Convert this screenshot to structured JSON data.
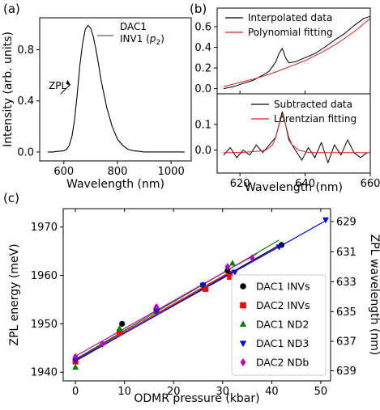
{
  "chart_data": [
    {
      "panel": "(a)",
      "type": "line",
      "xlabel": "Wavelength (nm)",
      "ylabel": "Intensity (arb. units)",
      "xlim": [
        510,
        1075
      ],
      "ylim": [
        -0.07,
        1.05
      ],
      "xticks": [
        600,
        800,
        1000
      ],
      "yticks": [
        0.0,
        0.4,
        0.8
      ],
      "yticklabels": [
        "0.0",
        "0.4",
        "0.8"
      ],
      "annotation": "ZPL",
      "annotation_point": [
        629,
        0.52
      ],
      "legend": {
        "position": "top-right",
        "line1": "DAC1",
        "line2": "INV1 (",
        "line2_italic": "p",
        "line2_sub": "2",
        "line2_end": ")"
      },
      "series": [
        {
          "color": "#000000",
          "x": [
            540,
            560,
            580,
            600,
            610,
            620,
            630,
            640,
            650,
            660,
            670,
            680,
            690,
            700,
            710,
            720,
            730,
            740,
            760,
            780,
            800,
            820,
            840,
            860,
            880,
            900,
            950,
            1000,
            1050
          ],
          "y": [
            0.0,
            0.0,
            0.005,
            0.01,
            0.02,
            0.05,
            0.12,
            0.25,
            0.45,
            0.68,
            0.85,
            0.96,
            0.99,
            0.97,
            0.9,
            0.8,
            0.68,
            0.55,
            0.35,
            0.2,
            0.1,
            0.05,
            0.02,
            0.01,
            0.005,
            0.0,
            0.0,
            0.0,
            0.0
          ]
        }
      ]
    },
    {
      "panel": "(b)",
      "type": "line",
      "xlim": [
        613,
        660
      ],
      "ylim": [
        -0.05,
        0.78
      ],
      "yticks": [
        0.0,
        0.2,
        0.4,
        0.6
      ],
      "yticklabels": [
        "0.0",
        "0.2",
        "0.4",
        "0.6"
      ],
      "legend": {
        "position": "top-left",
        "entries": [
          "Interpolated data",
          "Polynomial fitting"
        ]
      },
      "series": [
        {
          "name": "Interpolated data",
          "color": "#000000",
          "x": [
            615,
            618,
            621,
            624,
            627,
            629,
            631,
            632,
            633,
            634,
            635,
            637,
            640,
            643,
            646,
            649,
            652,
            655,
            658,
            660
          ],
          "y": [
            0.0,
            0.02,
            0.05,
            0.08,
            0.13,
            0.17,
            0.26,
            0.34,
            0.39,
            0.3,
            0.25,
            0.26,
            0.3,
            0.34,
            0.4,
            0.47,
            0.53,
            0.61,
            0.68,
            0.7
          ]
        },
        {
          "name": "Polynomial fitting",
          "color": "#e41a1c",
          "x": [
            615,
            620,
            625,
            630,
            635,
            640,
            645,
            650,
            655,
            660
          ],
          "y": [
            0.02,
            0.06,
            0.1,
            0.15,
            0.21,
            0.27,
            0.35,
            0.44,
            0.55,
            0.68
          ]
        }
      ]
    },
    {
      "panel": "(b) lower",
      "type": "line",
      "xlabel": "Wavelength (nm)",
      "xlim": [
        613,
        660
      ],
      "ylim": [
        -0.09,
        0.22
      ],
      "xticks": [
        620,
        640,
        660
      ],
      "yticks": [
        0.0,
        0.1
      ],
      "yticklabels": [
        "0.0",
        "0.1"
      ],
      "legend": {
        "position": "top-right",
        "entries": [
          "Subtracted data",
          "Lorentzian fitting"
        ]
      },
      "series": [
        {
          "name": "Subtracted data",
          "color": "#000000",
          "x": [
            615,
            617,
            619,
            621,
            623,
            625,
            627,
            629,
            631,
            632,
            633,
            634,
            635,
            637,
            639,
            641,
            643,
            645,
            647,
            649,
            651,
            653,
            655,
            657,
            659
          ],
          "y": [
            -0.02,
            0.01,
            -0.03,
            0.0,
            -0.02,
            0.02,
            -0.01,
            0.02,
            0.05,
            0.1,
            0.15,
            0.1,
            0.04,
            0.0,
            -0.04,
            0.01,
            -0.03,
            0.03,
            -0.05,
            0.02,
            -0.02,
            0.04,
            -0.01,
            -0.03,
            -0.01
          ]
        },
        {
          "name": "Lorentzian fitting",
          "color": "#e41a1c",
          "x": [
            615,
            620,
            625,
            628,
            630,
            631,
            632,
            633,
            634,
            635,
            636,
            638,
            641,
            645,
            650,
            655,
            660
          ],
          "y": [
            -0.01,
            -0.01,
            -0.005,
            0.0,
            0.02,
            0.05,
            0.1,
            0.14,
            0.1,
            0.05,
            0.02,
            0.0,
            -0.01,
            -0.01,
            -0.01,
            -0.01,
            -0.01
          ]
        }
      ]
    },
    {
      "panel": "(c)",
      "type": "scatter",
      "xlabel": "ODMR pressure (kbar)",
      "ylabel": "ZPL energy (meV)",
      "y2label": "ZPL wavelength (nm)",
      "xlim": [
        -2.5,
        52
      ],
      "ylim": [
        1938.2,
        1973.8
      ],
      "xticks": [
        0,
        10,
        20,
        30,
        40,
        50
      ],
      "yticks": [
        1940,
        1950,
        1960,
        1970
      ],
      "y2ticks": [
        "629",
        "631",
        "633",
        "635",
        "637",
        "639"
      ],
      "legend": {
        "position": "bottom-right"
      },
      "series": [
        {
          "name": "DAC1 INVs",
          "color": "#000000",
          "marker": "circle",
          "x": [
            0,
            9.5,
            26,
            31,
            42
          ],
          "y": [
            1942.3,
            1950,
            1958,
            1961,
            1966.3
          ],
          "fit_x": [
            0,
            42
          ],
          "fit_y": [
            1942.3,
            1966.5
          ]
        },
        {
          "name": "DAC2 INVs",
          "color": "#ff0000",
          "marker": "square",
          "x": [
            0,
            9,
            16.5,
            26.5,
            31.5
          ],
          "y": [
            1942.2,
            1948.3,
            1952.7,
            1957.2,
            1959.7
          ],
          "fit_x": [
            0,
            32
          ],
          "fit_y": [
            1942.6,
            1961
          ]
        },
        {
          "name": "DAC1 ND2",
          "color": "#008000",
          "marker": "triangle-up",
          "x": [
            0,
            9,
            16.5,
            26,
            32
          ],
          "y": [
            1941,
            1949,
            1952.5,
            1958,
            1962.5
          ],
          "fit_x": [
            0,
            41.5
          ],
          "fit_y": [
            1942.7,
            1967.3
          ]
        },
        {
          "name": "DAC1 ND3",
          "color": "#0000ff",
          "marker": "triangle-down",
          "x": [
            0,
            16.5,
            26,
            32.5,
            41.5,
            51
          ],
          "y": [
            1942.5,
            1952.7,
            1958,
            1960.7,
            1965.9,
            1971.5
          ],
          "fit_x": [
            0,
            51
          ],
          "fit_y": [
            1942.4,
            1971.3
          ]
        },
        {
          "name": "DAC2 NDb",
          "color": "#c000c0",
          "marker": "diamond",
          "x": [
            0,
            5.5,
            16.5,
            31,
            36
          ],
          "y": [
            1943.2,
            1945.8,
            1953.5,
            1961.8,
            1963.6
          ],
          "fit_x": [
            0,
            37
          ],
          "fit_y": [
            1943.3,
            1964.5
          ]
        }
      ]
    }
  ]
}
